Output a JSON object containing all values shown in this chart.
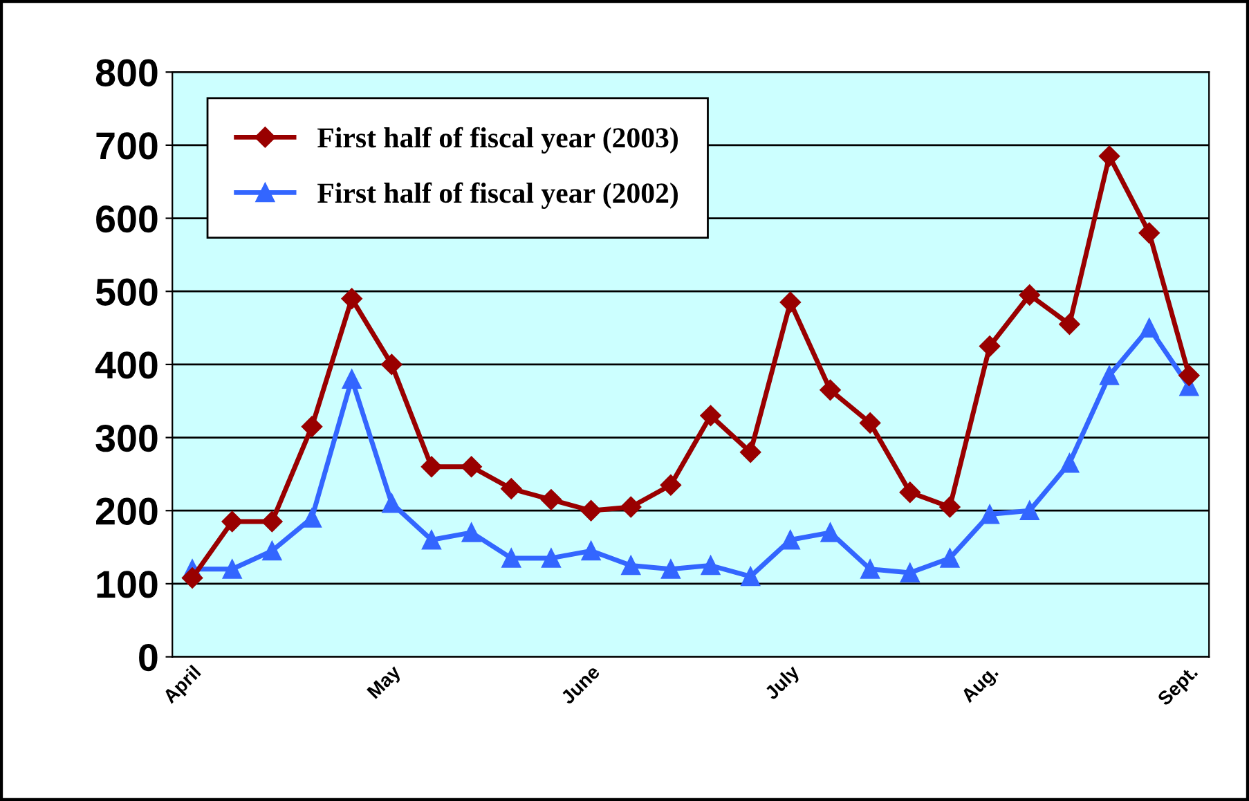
{
  "chart_data": {
    "type": "line",
    "categories": [
      "April",
      null,
      null,
      null,
      null,
      "May",
      null,
      null,
      null,
      null,
      "June",
      null,
      null,
      null,
      null,
      "July",
      null,
      null,
      null,
      null,
      "Aug.",
      null,
      null,
      null,
      null,
      "Sept."
    ],
    "series": [
      {
        "name": "First half of fiscal year (2003)",
        "color": "#990000",
        "marker": "diamond",
        "values": [
          108,
          185,
          185,
          315,
          490,
          400,
          260,
          260,
          230,
          215,
          200,
          205,
          235,
          330,
          280,
          485,
          365,
          320,
          225,
          205,
          425,
          495,
          455,
          685,
          580,
          385
        ]
      },
      {
        "name": "First half of fiscal year (2002)",
        "color": "#3366ff",
        "marker": "triangle",
        "values": [
          120,
          120,
          145,
          190,
          380,
          210,
          160,
          170,
          135,
          135,
          145,
          125,
          120,
          125,
          110,
          160,
          170,
          120,
          115,
          135,
          195,
          200,
          265,
          385,
          450,
          370
        ]
      }
    ],
    "ylim": [
      0,
      800
    ],
    "yticks": [
      0,
      100,
      200,
      300,
      400,
      500,
      600,
      700,
      800
    ],
    "grid": "y",
    "legend": "top left"
  }
}
